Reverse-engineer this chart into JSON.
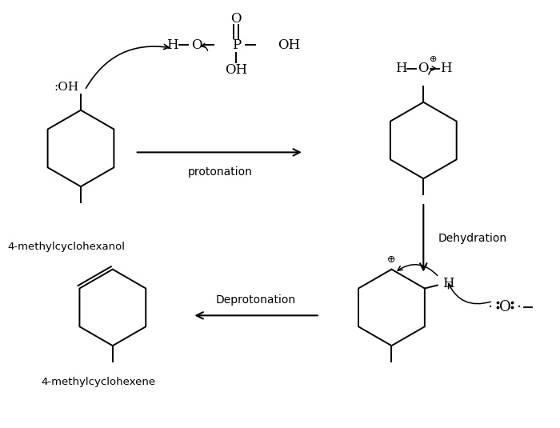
{
  "bg_color": "#ffffff",
  "fig_width": 7.0,
  "fig_height": 5.35,
  "dpi": 100,
  "labels": {
    "mol1": "4-methylcyclohexanol",
    "mol4": "4-methylcyclohexene",
    "protonation": "protonation",
    "dehydration": "Dehydration",
    "deprotonation": "Deprotonation"
  }
}
